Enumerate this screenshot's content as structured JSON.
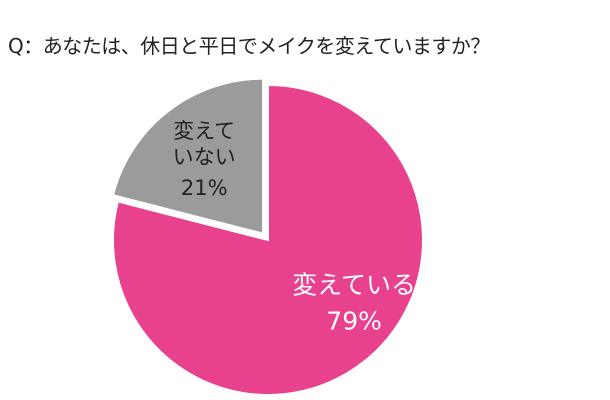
{
  "chart_data": {
    "type": "pie",
    "title": "Q：あなたは、休日と平日でメイクを変えていますか？",
    "categories": [
      "変えている",
      "変えていない"
    ],
    "values": [
      79,
      21
    ],
    "value_labels": [
      "79%",
      "21%"
    ],
    "colors": [
      "#e8418e",
      "#9b9b9b"
    ],
    "label_colors": [
      "#ffffff",
      "#222222"
    ]
  }
}
